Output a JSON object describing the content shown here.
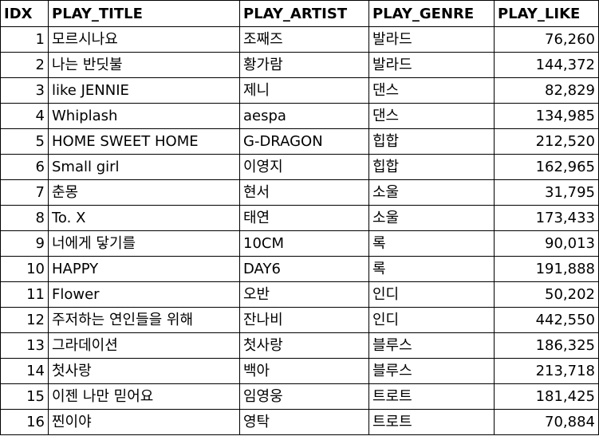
{
  "columns": {
    "idx": "IDX",
    "title": "PLAY_TITLE",
    "artist": "PLAY_ARTIST",
    "genre": "PLAY_GENRE",
    "like": "PLAY_LIKE"
  },
  "rows": [
    {
      "idx": "1",
      "title": "모르시나요",
      "artist": "조째즈",
      "genre": "발라드",
      "like": "76,260"
    },
    {
      "idx": "2",
      "title": "나는 반딧불",
      "artist": "황가람",
      "genre": "발라드",
      "like": "144,372"
    },
    {
      "idx": "3",
      "title": "like JENNIE",
      "artist": "제니",
      "genre": "댄스",
      "like": "82,829"
    },
    {
      "idx": "4",
      "title": "Whiplash",
      "artist": "aespa",
      "genre": "댄스",
      "like": "134,985"
    },
    {
      "idx": "5",
      "title": "HOME SWEET HOME",
      "artist": "G-DRAGON",
      "genre": "힙합",
      "like": "212,520"
    },
    {
      "idx": "6",
      "title": "Small girl",
      "artist": "이영지",
      "genre": "힙합",
      "like": "162,965"
    },
    {
      "idx": "7",
      "title": "춘몽",
      "artist": "현서",
      "genre": "소울",
      "like": "31,795"
    },
    {
      "idx": "8",
      "title": "To. X",
      "artist": "태연",
      "genre": "소울",
      "like": "173,433"
    },
    {
      "idx": "9",
      "title": "너에게 닿기를",
      "artist": "10CM",
      "genre": "록",
      "like": "90,013"
    },
    {
      "idx": "10",
      "title": "HAPPY",
      "artist": "DAY6",
      "genre": "록",
      "like": "191,888"
    },
    {
      "idx": "11",
      "title": "Flower",
      "artist": "오반",
      "genre": "인디",
      "like": "50,202"
    },
    {
      "idx": "12",
      "title": "주저하는 연인들을 위해",
      "artist": "잔나비",
      "genre": "인디",
      "like": "442,550"
    },
    {
      "idx": "13",
      "title": "그라데이션",
      "artist": "첫사랑",
      "genre": "블루스",
      "like": "186,325"
    },
    {
      "idx": "14",
      "title": "첫사랑",
      "artist": "백아",
      "genre": "블루스",
      "like": "213,718"
    },
    {
      "idx": "15",
      "title": "이젠 나만 믿어요",
      "artist": "임영웅",
      "genre": "트로트",
      "like": "181,425"
    },
    {
      "idx": "16",
      "title": "찐이야",
      "artist": "영탁",
      "genre": "트로트",
      "like": "70,884"
    }
  ]
}
